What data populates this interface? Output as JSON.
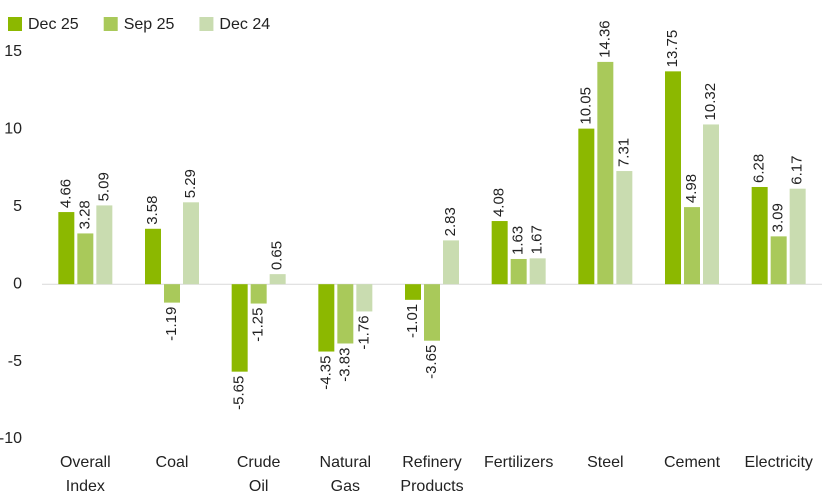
{
  "chart_data": {
    "type": "bar",
    "categories": [
      "Overall Index",
      "Coal",
      "Crude Oil",
      "Natural Gas",
      "Refinery Products",
      "Fertilizers",
      "Steel",
      "Cement",
      "Electricity"
    ],
    "series": [
      {
        "name": "Dec 25",
        "color": "#8cb800",
        "values": [
          4.66,
          3.58,
          -5.65,
          -4.35,
          -1.01,
          4.08,
          10.05,
          13.75,
          6.28
        ]
      },
      {
        "name": "Sep 25",
        "color": "#a9c95a",
        "values": [
          3.28,
          -1.19,
          -1.25,
          -3.83,
          -3.65,
          1.63,
          14.36,
          4.98,
          3.09
        ]
      },
      {
        "name": "Dec 24",
        "color": "#c9dcb0",
        "values": [
          5.09,
          5.29,
          0.65,
          -1.76,
          2.83,
          1.67,
          7.31,
          10.32,
          6.17
        ]
      }
    ],
    "ylim": [
      -10,
      15
    ],
    "yticks": [
      -10,
      -5,
      0,
      5,
      10,
      15
    ],
    "grid": false,
    "legend": "top-left"
  }
}
